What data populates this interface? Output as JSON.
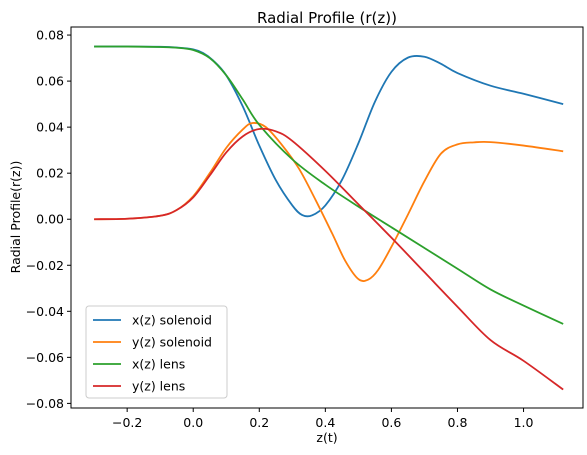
{
  "chart_data": {
    "type": "line",
    "title": "Radial Profile (r(z))",
    "xlabel": "z(t)",
    "ylabel": "Radial Profile(r(z))",
    "xlim": [
      -0.37,
      1.18
    ],
    "ylim": [
      -0.082,
      0.0835
    ],
    "xticks": [
      -0.2,
      0.0,
      0.2,
      0.4,
      0.6,
      0.8,
      1.0
    ],
    "xtick_labels": [
      "−0.2",
      "0.0",
      "0.2",
      "0.4",
      "0.6",
      "0.8",
      "1.0"
    ],
    "yticks": [
      -0.08,
      -0.06,
      -0.04,
      -0.02,
      0.0,
      0.02,
      0.04,
      0.06,
      0.08
    ],
    "ytick_labels": [
      "−0.08",
      "−0.06",
      "−0.04",
      "−0.02",
      "0.00",
      "0.02",
      "0.04",
      "0.06",
      "0.08"
    ],
    "grid": false,
    "legend_position": "lower-left",
    "series": [
      {
        "name": "x(z) solenoid",
        "color": "#1f77b4",
        "x": [
          -0.3,
          -0.2,
          -0.1,
          -0.05,
          0.0,
          0.03,
          0.06,
          0.1,
          0.15,
          0.2,
          0.25,
          0.3,
          0.33,
          0.36,
          0.4,
          0.45,
          0.5,
          0.55,
          0.6,
          0.65,
          0.7,
          0.75,
          0.8,
          0.9,
          1.0,
          1.12
        ],
        "y": [
          0.075,
          0.075,
          0.0749,
          0.0746,
          0.0738,
          0.0722,
          0.069,
          0.0625,
          0.049,
          0.032,
          0.017,
          0.006,
          0.0018,
          0.0017,
          0.006,
          0.017,
          0.033,
          0.051,
          0.064,
          0.0702,
          0.0706,
          0.0675,
          0.0635,
          0.058,
          0.0545,
          0.05
        ]
      },
      {
        "name": "y(z) solenoid",
        "color": "#ff7f0e",
        "x": [
          -0.3,
          -0.2,
          -0.1,
          -0.05,
          0.0,
          0.05,
          0.1,
          0.15,
          0.18,
          0.22,
          0.27,
          0.32,
          0.37,
          0.42,
          0.46,
          0.5,
          0.53,
          0.56,
          0.6,
          0.65,
          0.7,
          0.75,
          0.8,
          0.85,
          0.9,
          1.0,
          1.12
        ],
        "y": [
          0.0,
          0.0002,
          0.0015,
          0.004,
          0.01,
          0.02,
          0.031,
          0.039,
          0.0418,
          0.04,
          0.032,
          0.022,
          0.0085,
          -0.006,
          -0.018,
          -0.026,
          -0.0262,
          -0.022,
          -0.012,
          0.002,
          0.0165,
          0.0285,
          0.0325,
          0.0334,
          0.0335,
          0.032,
          0.0295
        ]
      },
      {
        "name": "x(z) lens",
        "color": "#2ca02c",
        "x": [
          -0.3,
          -0.2,
          -0.1,
          -0.05,
          0.0,
          0.05,
          0.1,
          0.15,
          0.2,
          0.3,
          0.4,
          0.5,
          0.6,
          0.7,
          0.8,
          0.9,
          1.0,
          1.12
        ],
        "y": [
          0.075,
          0.075,
          0.0748,
          0.0745,
          0.0735,
          0.07,
          0.0625,
          0.052,
          0.041,
          0.026,
          0.015,
          0.0055,
          -0.0035,
          -0.0125,
          -0.0215,
          -0.0305,
          -0.0375,
          -0.0455
        ]
      },
      {
        "name": "y(z) lens",
        "color": "#d62728",
        "x": [
          -0.3,
          -0.2,
          -0.1,
          -0.05,
          0.0,
          0.05,
          0.1,
          0.15,
          0.2,
          0.25,
          0.3,
          0.4,
          0.5,
          0.6,
          0.7,
          0.8,
          0.9,
          1.0,
          1.12
        ],
        "y": [
          0.0,
          0.0002,
          0.0015,
          0.004,
          0.0095,
          0.019,
          0.029,
          0.036,
          0.0392,
          0.0382,
          0.034,
          0.021,
          0.0065,
          -0.008,
          -0.023,
          -0.038,
          -0.0525,
          -0.0615,
          -0.074
        ]
      }
    ]
  }
}
